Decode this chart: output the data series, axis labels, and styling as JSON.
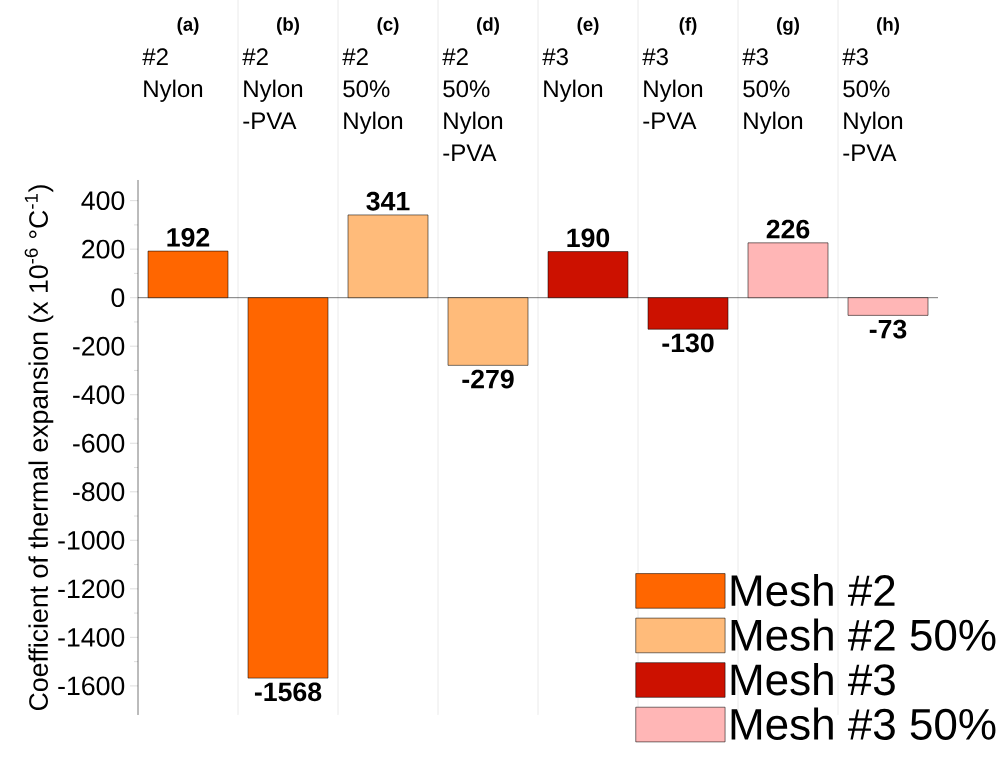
{
  "chart_data": {
    "type": "bar",
    "ylabel": "Coefficient of thermal expansion (x 10$^{-6}$ °C$^{-1}$)",
    "categories": [
      "#2 Nylon",
      "#2 Nylon -PVA",
      "#2 50% Nylon",
      "#2 50% Nylon -PVA",
      "#3 Nylon",
      "#3 Nylon -PVA",
      "#3 50% Nylon",
      "#3 50% Nylon -PVA"
    ],
    "annotations": [
      "(a)",
      "(b)",
      "(c)",
      "(d)",
      "(e)",
      "(f)",
      "(g)",
      "(h)"
    ],
    "series": [
      {
        "name": "Mesh #2",
        "color": "#ff6600",
        "values": [
          192,
          -1568,
          null,
          null,
          null,
          null,
          null,
          null
        ]
      },
      {
        "name": "Mesh #2 50%",
        "color": "#ffbb7a",
        "values": [
          null,
          null,
          341,
          -279,
          null,
          null,
          null,
          null
        ]
      },
      {
        "name": "Mesh #3",
        "color": "#cc1100",
        "values": [
          null,
          null,
          null,
          null,
          190,
          -130,
          null,
          null
        ]
      },
      {
        "name": "Mesh #3 50%",
        "color": "#ffb6b6",
        "values": [
          null,
          null,
          null,
          null,
          null,
          null,
          226,
          -73
        ]
      }
    ],
    "ylim": [
      -1720,
      485
    ],
    "yticks": [
      -1600,
      -1400,
      -1200,
      -1000,
      -800,
      -600,
      -400,
      -200,
      0,
      200,
      400
    ],
    "data_labels": true,
    "legend": "bottom right"
  }
}
